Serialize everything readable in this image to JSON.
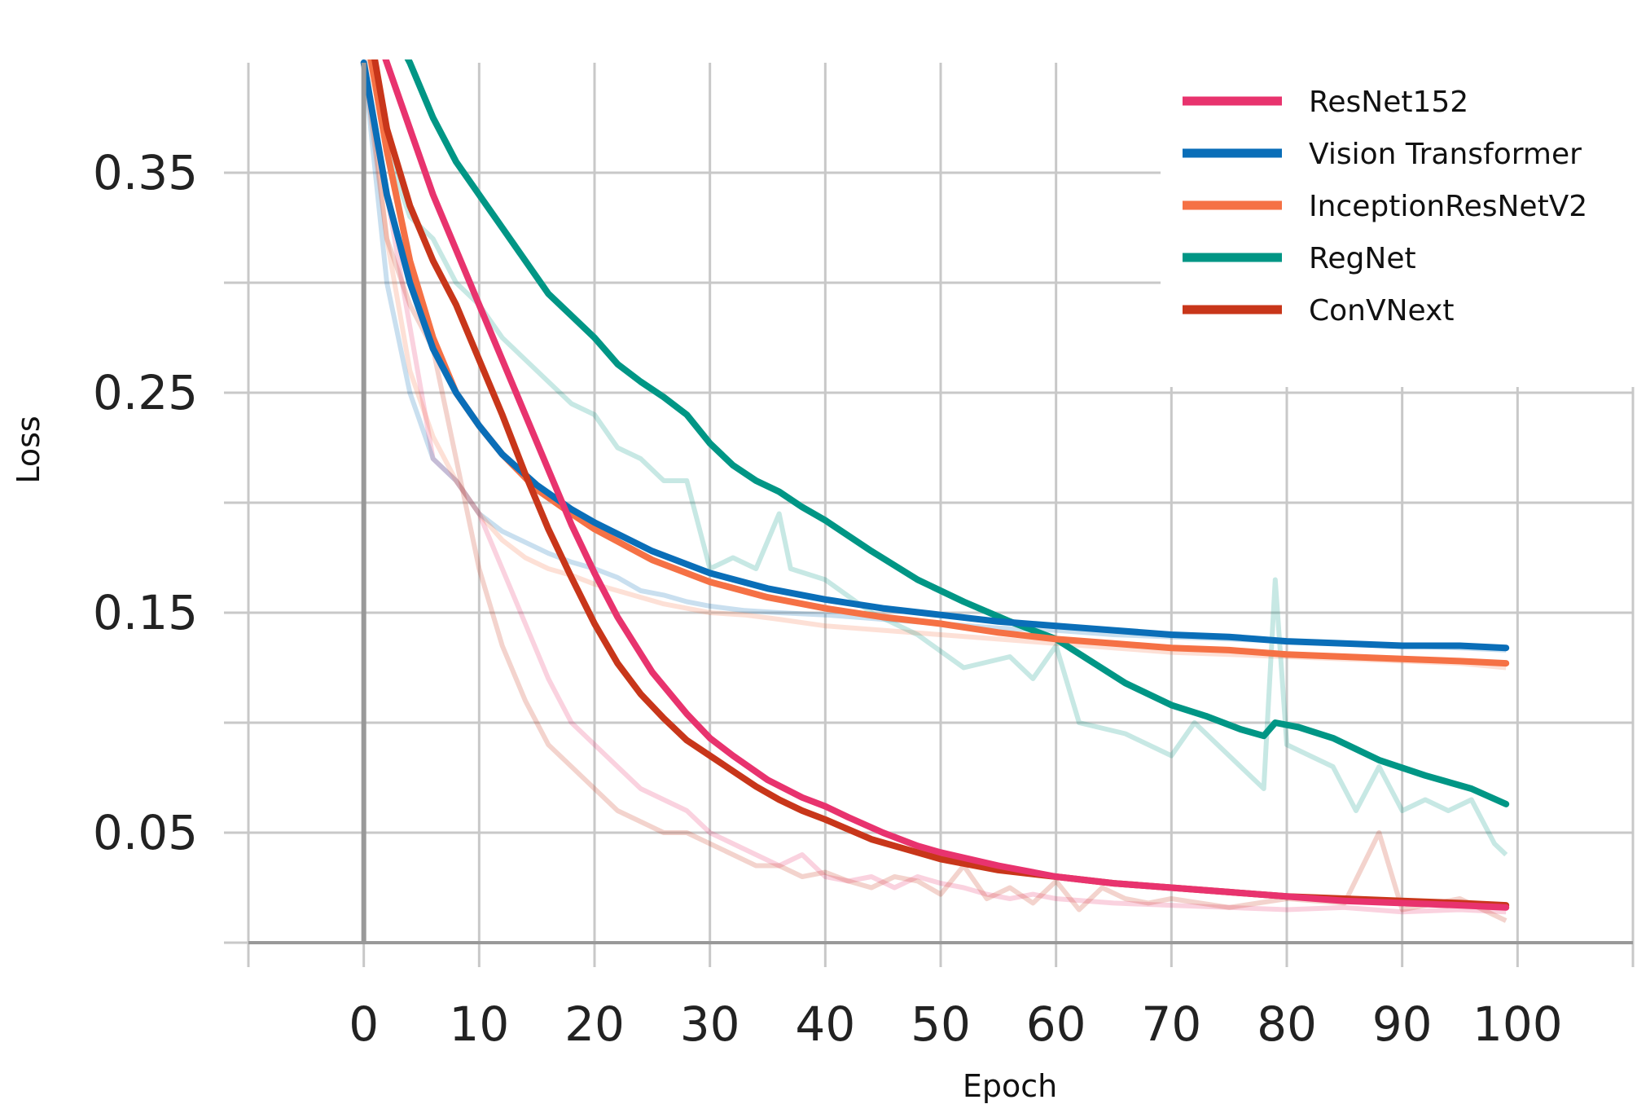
{
  "chart_data": {
    "type": "line",
    "title": "",
    "xlabel": "Epoch",
    "ylabel": "Loss",
    "xlim": [
      -10,
      110
    ],
    "ylim": [
      0.0,
      0.4
    ],
    "xticks": [
      0,
      10,
      20,
      30,
      40,
      50,
      60,
      70,
      80,
      90,
      100
    ],
    "xtick_labels": [
      "0",
      "10",
      "20",
      "30",
      "40",
      "50",
      "60",
      "70",
      "80",
      "90",
      "100"
    ],
    "xgrid": [
      -10,
      0,
      10,
      20,
      30,
      40,
      50,
      60,
      70,
      80,
      90,
      100,
      110
    ],
    "yticks": [
      0.05,
      0.15,
      0.25,
      0.35
    ],
    "ytick_labels": [
      "0.05",
      "0.15",
      "0.25",
      "0.35"
    ],
    "ygrid": [
      0.0,
      0.05,
      0.1,
      0.15,
      0.2,
      0.25,
      0.3,
      0.35
    ],
    "grid": true,
    "legend_position": "top-right",
    "series": [
      {
        "name": "ResNet152",
        "color": "#e8336e",
        "smoothed": {
          "x": [
            0,
            2,
            4,
            6,
            8,
            10,
            12,
            14,
            16,
            18,
            20,
            22,
            25,
            28,
            30,
            32,
            35,
            38,
            40,
            42,
            45,
            48,
            50,
            55,
            60,
            65,
            70,
            75,
            80,
            85,
            90,
            95,
            99
          ],
          "y": [
            0.43,
            0.4,
            0.37,
            0.34,
            0.315,
            0.29,
            0.265,
            0.24,
            0.215,
            0.19,
            0.168,
            0.148,
            0.123,
            0.104,
            0.093,
            0.085,
            0.074,
            0.066,
            0.062,
            0.057,
            0.05,
            0.044,
            0.041,
            0.035,
            0.03,
            0.027,
            0.025,
            0.023,
            0.021,
            0.019,
            0.018,
            0.017,
            0.016
          ]
        },
        "raw": {
          "x": [
            0,
            2,
            4,
            6,
            8,
            10,
            12,
            14,
            16,
            18,
            20,
            22,
            24,
            26,
            28,
            30,
            32,
            34,
            36,
            38,
            40,
            42,
            44,
            46,
            48,
            50,
            52,
            54,
            56,
            58,
            60,
            65,
            70,
            75,
            80,
            85,
            90,
            95,
            99
          ],
          "y": [
            0.4,
            0.34,
            0.28,
            0.22,
            0.21,
            0.195,
            0.17,
            0.145,
            0.12,
            0.1,
            0.09,
            0.08,
            0.07,
            0.065,
            0.06,
            0.05,
            0.045,
            0.04,
            0.035,
            0.04,
            0.03,
            0.028,
            0.03,
            0.025,
            0.03,
            0.027,
            0.025,
            0.022,
            0.02,
            0.022,
            0.02,
            0.018,
            0.017,
            0.016,
            0.015,
            0.016,
            0.014,
            0.015,
            0.014
          ]
        }
      },
      {
        "name": "Vision Transformer",
        "color": "#0a6eb8",
        "smoothed": {
          "x": [
            0,
            2,
            4,
            6,
            8,
            10,
            12,
            15,
            18,
            20,
            25,
            30,
            35,
            40,
            45,
            50,
            55,
            60,
            65,
            70,
            75,
            80,
            85,
            90,
            95,
            99
          ],
          "y": [
            0.4,
            0.34,
            0.3,
            0.27,
            0.25,
            0.235,
            0.222,
            0.208,
            0.197,
            0.191,
            0.178,
            0.168,
            0.161,
            0.156,
            0.152,
            0.149,
            0.146,
            0.144,
            0.142,
            0.14,
            0.139,
            0.137,
            0.136,
            0.135,
            0.135,
            0.134
          ]
        },
        "raw": {
          "x": [
            0,
            2,
            4,
            6,
            8,
            10,
            12,
            14,
            16,
            18,
            20,
            22,
            24,
            26,
            28,
            30,
            33,
            36,
            40,
            45,
            50,
            55,
            60,
            65,
            70,
            75,
            80,
            85,
            90,
            95,
            99
          ],
          "y": [
            0.4,
            0.3,
            0.25,
            0.22,
            0.21,
            0.195,
            0.187,
            0.182,
            0.177,
            0.173,
            0.17,
            0.166,
            0.16,
            0.158,
            0.155,
            0.153,
            0.151,
            0.15,
            0.149,
            0.147,
            0.145,
            0.143,
            0.142,
            0.14,
            0.139,
            0.138,
            0.137,
            0.136,
            0.135,
            0.134,
            0.133
          ]
        }
      },
      {
        "name": "InceptionResNetV2",
        "color": "#f57145",
        "smoothed": {
          "x": [
            0,
            2,
            4,
            6,
            8,
            10,
            12,
            15,
            18,
            20,
            25,
            30,
            35,
            40,
            45,
            50,
            55,
            60,
            65,
            70,
            75,
            80,
            85,
            90,
            95,
            99
          ],
          "y": [
            0.42,
            0.36,
            0.31,
            0.275,
            0.25,
            0.235,
            0.222,
            0.206,
            0.195,
            0.188,
            0.174,
            0.164,
            0.157,
            0.152,
            0.148,
            0.145,
            0.141,
            0.138,
            0.136,
            0.134,
            0.133,
            0.131,
            0.13,
            0.129,
            0.128,
            0.127
          ]
        },
        "raw": {
          "x": [
            0,
            2,
            4,
            6,
            8,
            10,
            12,
            14,
            16,
            18,
            20,
            22,
            24,
            26,
            28,
            30,
            33,
            36,
            40,
            45,
            50,
            55,
            60,
            65,
            70,
            75,
            80,
            85,
            90,
            95,
            99
          ],
          "y": [
            0.41,
            0.32,
            0.26,
            0.23,
            0.21,
            0.195,
            0.183,
            0.175,
            0.17,
            0.167,
            0.163,
            0.16,
            0.157,
            0.154,
            0.152,
            0.15,
            0.149,
            0.147,
            0.144,
            0.142,
            0.14,
            0.138,
            0.136,
            0.134,
            0.132,
            0.131,
            0.13,
            0.129,
            0.128,
            0.127,
            0.125
          ]
        }
      },
      {
        "name": "RegNet",
        "color": "#009685",
        "smoothed": {
          "x": [
            0,
            2,
            4,
            6,
            8,
            10,
            12,
            14,
            16,
            18,
            20,
            22,
            24,
            26,
            28,
            30,
            32,
            34,
            36,
            38,
            40,
            44,
            48,
            52,
            56,
            60,
            63,
            66,
            70,
            73,
            76,
            78,
            79,
            81,
            84,
            88,
            92,
            96,
            99
          ],
          "y": [
            0.45,
            0.42,
            0.4,
            0.375,
            0.355,
            0.34,
            0.325,
            0.31,
            0.295,
            0.285,
            0.275,
            0.263,
            0.255,
            0.248,
            0.24,
            0.227,
            0.217,
            0.21,
            0.205,
            0.198,
            0.192,
            0.178,
            0.165,
            0.155,
            0.146,
            0.138,
            0.128,
            0.118,
            0.108,
            0.103,
            0.097,
            0.094,
            0.1,
            0.098,
            0.093,
            0.083,
            0.076,
            0.07,
            0.063
          ]
        },
        "raw": {
          "x": [
            0,
            2,
            4,
            6,
            8,
            10,
            12,
            14,
            16,
            18,
            20,
            22,
            24,
            26,
            28,
            29,
            30,
            32,
            34,
            36,
            37,
            40,
            44,
            48,
            52,
            56,
            58,
            60,
            62,
            66,
            70,
            72,
            74,
            76,
            78,
            79,
            80,
            82,
            84,
            86,
            88,
            90,
            92,
            94,
            96,
            98,
            99
          ],
          "y": [
            0.42,
            0.36,
            0.33,
            0.32,
            0.3,
            0.29,
            0.275,
            0.265,
            0.255,
            0.245,
            0.24,
            0.225,
            0.22,
            0.21,
            0.21,
            0.19,
            0.17,
            0.175,
            0.17,
            0.195,
            0.17,
            0.165,
            0.15,
            0.14,
            0.125,
            0.13,
            0.12,
            0.135,
            0.1,
            0.095,
            0.085,
            0.1,
            0.09,
            0.08,
            0.07,
            0.165,
            0.09,
            0.085,
            0.08,
            0.06,
            0.08,
            0.06,
            0.065,
            0.06,
            0.065,
            0.045,
            0.04
          ]
        }
      },
      {
        "name": "ConVNext",
        "color": "#c8361a",
        "smoothed": {
          "x": [
            0,
            2,
            4,
            6,
            8,
            10,
            12,
            14,
            16,
            18,
            20,
            22,
            24,
            26,
            28,
            30,
            32,
            34,
            36,
            38,
            40,
            44,
            48,
            50,
            55,
            60,
            65,
            70,
            75,
            80,
            85,
            90,
            95,
            99
          ],
          "y": [
            0.43,
            0.37,
            0.335,
            0.31,
            0.29,
            0.265,
            0.24,
            0.213,
            0.188,
            0.166,
            0.145,
            0.127,
            0.113,
            0.102,
            0.092,
            0.085,
            0.078,
            0.071,
            0.065,
            0.06,
            0.056,
            0.047,
            0.041,
            0.038,
            0.033,
            0.03,
            0.027,
            0.025,
            0.023,
            0.021,
            0.02,
            0.019,
            0.018,
            0.017
          ]
        },
        "raw": {
          "x": [
            0,
            2,
            4,
            6,
            8,
            10,
            12,
            14,
            16,
            18,
            20,
            22,
            24,
            26,
            28,
            30,
            32,
            34,
            36,
            38,
            40,
            42,
            44,
            46,
            48,
            50,
            52,
            54,
            56,
            58,
            60,
            62,
            64,
            66,
            68,
            70,
            75,
            80,
            85,
            88,
            90,
            95,
            99
          ],
          "y": [
            0.4,
            0.32,
            0.29,
            0.27,
            0.22,
            0.17,
            0.135,
            0.11,
            0.09,
            0.08,
            0.07,
            0.06,
            0.055,
            0.05,
            0.05,
            0.045,
            0.04,
            0.035,
            0.035,
            0.03,
            0.032,
            0.028,
            0.025,
            0.03,
            0.028,
            0.022,
            0.035,
            0.02,
            0.025,
            0.018,
            0.028,
            0.015,
            0.025,
            0.02,
            0.018,
            0.02,
            0.016,
            0.02,
            0.018,
            0.05,
            0.015,
            0.02,
            0.01
          ]
        }
      }
    ]
  }
}
